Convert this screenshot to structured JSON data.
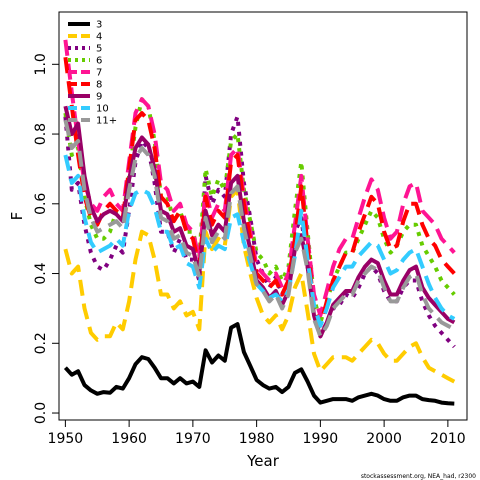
{
  "chart_data": {
    "type": "line",
    "title": "",
    "xlabel": "Year",
    "ylabel": "F",
    "xlim": [
      1949,
      2013
    ],
    "ylim": [
      -0.02,
      1.15
    ],
    "xticks": [
      1950,
      1960,
      1970,
      1980,
      1990,
      2000,
      2010
    ],
    "yticks": [
      0.0,
      0.2,
      0.4,
      0.6,
      0.8,
      1.0
    ],
    "xtick_labels": [
      "1950",
      "1960",
      "1970",
      "1980",
      "1990",
      "2000",
      "2010"
    ],
    "ytick_labels": [
      "0.0",
      "0.2",
      "0.4",
      "0.6",
      "0.8",
      "1.0"
    ],
    "grid": false,
    "legend_position": "top-left",
    "credit": "stockassessment.org, NEA_had, r2300",
    "x": [
      1950,
      1951,
      1952,
      1953,
      1954,
      1955,
      1956,
      1957,
      1958,
      1959,
      1960,
      1961,
      1962,
      1963,
      1964,
      1965,
      1966,
      1967,
      1968,
      1969,
      1970,
      1971,
      1972,
      1973,
      1974,
      1975,
      1976,
      1977,
      1978,
      1979,
      1980,
      1981,
      1982,
      1983,
      1984,
      1985,
      1986,
      1987,
      1988,
      1989,
      1990,
      1991,
      1992,
      1993,
      1994,
      1995,
      1996,
      1997,
      1998,
      1999,
      2000,
      2001,
      2002,
      2003,
      2004,
      2005,
      2006,
      2007,
      2008,
      2009,
      2010,
      2011
    ],
    "series": [
      {
        "name": "3",
        "color": "#000000",
        "dash": "solid",
        "values": [
          0.13,
          0.11,
          0.12,
          0.08,
          0.065,
          0.055,
          0.06,
          0.058,
          0.075,
          0.07,
          0.1,
          0.14,
          0.16,
          0.155,
          0.13,
          0.1,
          0.1,
          0.085,
          0.1,
          0.085,
          0.09,
          0.075,
          0.18,
          0.145,
          0.165,
          0.15,
          0.245,
          0.255,
          0.175,
          0.135,
          0.095,
          0.08,
          0.07,
          0.075,
          0.06,
          0.075,
          0.115,
          0.125,
          0.09,
          0.05,
          0.03,
          0.035,
          0.04,
          0.04,
          0.04,
          0.035,
          0.045,
          0.05,
          0.055,
          0.05,
          0.04,
          0.035,
          0.035,
          0.045,
          0.05,
          0.05,
          0.04,
          0.037,
          0.035,
          0.03,
          0.028,
          0.027
        ]
      },
      {
        "name": "4",
        "color": "#FFCC00",
        "dash": "dash",
        "values": [
          0.47,
          0.4,
          0.42,
          0.3,
          0.23,
          0.21,
          0.22,
          0.22,
          0.26,
          0.24,
          0.32,
          0.44,
          0.52,
          0.51,
          0.44,
          0.34,
          0.34,
          0.3,
          0.32,
          0.28,
          0.29,
          0.24,
          0.52,
          0.47,
          0.5,
          0.48,
          0.62,
          0.64,
          0.48,
          0.4,
          0.33,
          0.28,
          0.26,
          0.28,
          0.24,
          0.28,
          0.36,
          0.4,
          0.29,
          0.17,
          0.12,
          0.14,
          0.16,
          0.16,
          0.16,
          0.15,
          0.17,
          0.19,
          0.21,
          0.2,
          0.17,
          0.15,
          0.15,
          0.17,
          0.19,
          0.2,
          0.16,
          0.13,
          0.12,
          0.11,
          0.1,
          0.09
        ]
      },
      {
        "name": "5",
        "color": "#800080",
        "dash": "dot",
        "values": [
          0.85,
          0.64,
          0.66,
          0.54,
          0.46,
          0.42,
          0.41,
          0.44,
          0.48,
          0.46,
          0.58,
          0.72,
          0.78,
          0.76,
          0.66,
          0.52,
          0.52,
          0.46,
          0.5,
          0.44,
          0.44,
          0.38,
          0.68,
          0.6,
          0.64,
          0.62,
          0.8,
          0.85,
          0.66,
          0.56,
          0.44,
          0.4,
          0.36,
          0.39,
          0.34,
          0.38,
          0.52,
          0.56,
          0.42,
          0.28,
          0.22,
          0.26,
          0.3,
          0.31,
          0.34,
          0.33,
          0.36,
          0.4,
          0.42,
          0.4,
          0.35,
          0.32,
          0.32,
          0.36,
          0.38,
          0.38,
          0.32,
          0.28,
          0.25,
          0.23,
          0.21,
          0.19
        ]
      },
      {
        "name": "6",
        "color": "#66CC00",
        "dash": "dot",
        "values": [
          0.86,
          0.74,
          0.76,
          0.62,
          0.54,
          0.5,
          0.5,
          0.52,
          0.58,
          0.56,
          0.68,
          0.82,
          0.9,
          0.88,
          0.78,
          0.62,
          0.62,
          0.55,
          0.58,
          0.52,
          0.52,
          0.45,
          0.7,
          0.62,
          0.67,
          0.64,
          0.78,
          0.8,
          0.64,
          0.55,
          0.46,
          0.44,
          0.4,
          0.42,
          0.38,
          0.42,
          0.58,
          0.72,
          0.52,
          0.33,
          0.26,
          0.32,
          0.38,
          0.42,
          0.46,
          0.46,
          0.5,
          0.54,
          0.58,
          0.56,
          0.5,
          0.46,
          0.48,
          0.52,
          0.54,
          0.54,
          0.48,
          0.45,
          0.42,
          0.38,
          0.36,
          0.34
        ]
      },
      {
        "name": "7",
        "color": "#FF1493",
        "dash": "dash",
        "values": [
          1.07,
          0.92,
          0.78,
          0.66,
          0.6,
          0.58,
          0.62,
          0.64,
          0.6,
          0.58,
          0.72,
          0.86,
          0.9,
          0.88,
          0.8,
          0.66,
          0.64,
          0.58,
          0.6,
          0.54,
          0.52,
          0.44,
          0.64,
          0.56,
          0.6,
          0.58,
          0.74,
          0.76,
          0.62,
          0.52,
          0.42,
          0.4,
          0.38,
          0.4,
          0.36,
          0.4,
          0.54,
          0.68,
          0.5,
          0.34,
          0.28,
          0.35,
          0.42,
          0.47,
          0.5,
          0.5,
          0.56,
          0.62,
          0.67,
          0.64,
          0.56,
          0.5,
          0.52,
          0.6,
          0.65,
          0.66,
          0.58,
          0.56,
          0.54,
          0.5,
          0.48,
          0.46
        ]
      },
      {
        "name": "8",
        "color": "#FF0000",
        "dash": "dash",
        "values": [
          1.02,
          0.88,
          0.74,
          0.62,
          0.56,
          0.54,
          0.58,
          0.6,
          0.58,
          0.56,
          0.7,
          0.84,
          0.86,
          0.84,
          0.76,
          0.62,
          0.6,
          0.55,
          0.58,
          0.52,
          0.5,
          0.42,
          0.62,
          0.54,
          0.58,
          0.56,
          0.72,
          0.74,
          0.6,
          0.5,
          0.4,
          0.38,
          0.36,
          0.38,
          0.34,
          0.38,
          0.5,
          0.65,
          0.48,
          0.3,
          0.25,
          0.32,
          0.38,
          0.42,
          0.46,
          0.46,
          0.52,
          0.57,
          0.62,
          0.6,
          0.52,
          0.47,
          0.48,
          0.55,
          0.6,
          0.6,
          0.54,
          0.5,
          0.48,
          0.44,
          0.42,
          0.4
        ]
      },
      {
        "name": "9",
        "color": "#990066",
        "dash": "solid",
        "values": [
          0.88,
          0.8,
          0.83,
          0.68,
          0.59,
          0.55,
          0.57,
          0.58,
          0.57,
          0.55,
          0.67,
          0.76,
          0.79,
          0.77,
          0.7,
          0.58,
          0.57,
          0.52,
          0.53,
          0.48,
          0.47,
          0.4,
          0.58,
          0.51,
          0.54,
          0.52,
          0.66,
          0.68,
          0.55,
          0.47,
          0.38,
          0.36,
          0.33,
          0.35,
          0.31,
          0.35,
          0.47,
          0.51,
          0.42,
          0.28,
          0.22,
          0.26,
          0.31,
          0.33,
          0.35,
          0.35,
          0.39,
          0.42,
          0.44,
          0.43,
          0.38,
          0.34,
          0.34,
          0.38,
          0.41,
          0.42,
          0.36,
          0.33,
          0.31,
          0.29,
          0.27,
          0.26
        ]
      },
      {
        "name": "10",
        "color": "#33CCFF",
        "dash": "dash",
        "values": [
          0.74,
          0.66,
          0.68,
          0.56,
          0.49,
          0.46,
          0.47,
          0.48,
          0.5,
          0.48,
          0.58,
          0.63,
          0.64,
          0.63,
          0.59,
          0.52,
          0.52,
          0.47,
          0.48,
          0.43,
          0.42,
          0.36,
          0.5,
          0.46,
          0.48,
          0.47,
          0.56,
          0.57,
          0.49,
          0.43,
          0.37,
          0.35,
          0.33,
          0.34,
          0.32,
          0.35,
          0.45,
          0.58,
          0.44,
          0.31,
          0.25,
          0.3,
          0.36,
          0.39,
          0.42,
          0.42,
          0.45,
          0.47,
          0.49,
          0.48,
          0.44,
          0.4,
          0.41,
          0.44,
          0.46,
          0.47,
          0.42,
          0.37,
          0.33,
          0.3,
          0.28,
          0.27
        ]
      },
      {
        "name": "11+",
        "color": "#999999",
        "dash": "dash",
        "values": [
          0.84,
          0.76,
          0.78,
          0.64,
          0.56,
          0.52,
          0.53,
          0.54,
          0.55,
          0.53,
          0.64,
          0.73,
          0.76,
          0.74,
          0.68,
          0.56,
          0.55,
          0.5,
          0.51,
          0.46,
          0.45,
          0.39,
          0.56,
          0.49,
          0.52,
          0.5,
          0.63,
          0.65,
          0.53,
          0.45,
          0.37,
          0.35,
          0.32,
          0.34,
          0.3,
          0.34,
          0.46,
          0.5,
          0.41,
          0.27,
          0.22,
          0.25,
          0.3,
          0.32,
          0.34,
          0.34,
          0.38,
          0.4,
          0.42,
          0.41,
          0.36,
          0.32,
          0.32,
          0.36,
          0.39,
          0.4,
          0.34,
          0.3,
          0.28,
          0.26,
          0.25,
          0.24
        ]
      }
    ]
  }
}
